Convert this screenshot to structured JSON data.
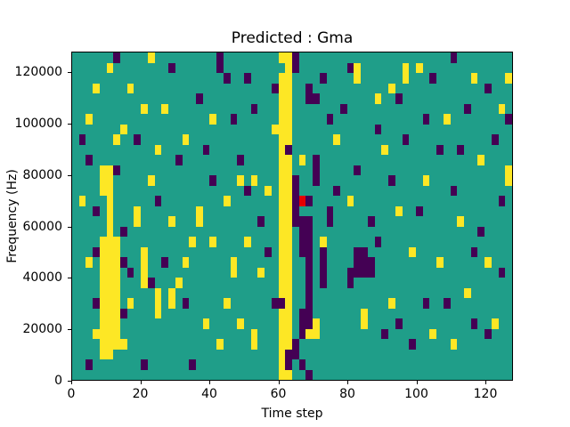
{
  "chart_data": {
    "type": "heatmap",
    "title": "Predicted : Gma",
    "xlabel": "Time step",
    "ylabel": "Frequency (Hz)",
    "xlim": [
      0,
      128
    ],
    "ylim": [
      0,
      128000
    ],
    "xticks": [
      0,
      20,
      40,
      60,
      80,
      100,
      120
    ],
    "yticks": [
      0,
      20000,
      40000,
      60000,
      80000,
      100000,
      120000
    ],
    "colormap": "viridis",
    "legend": "none",
    "colors": {
      "bg": "#1f9e89",
      "y": "#fde725",
      "p": "#440154",
      "r": "#e50000"
    },
    "grid": {
      "cols": 64,
      "rows": 32,
      "cell_time_span": 2,
      "cell_freq_span": 4000
    },
    "cells": [
      [
        30,
        0,
        2,
        32,
        "y"
      ],
      [
        30,
        1,
        1,
        1,
        "bg"
      ],
      [
        31,
        9,
        1,
        1,
        "p"
      ],
      [
        30,
        24,
        1,
        1,
        "p"
      ],
      [
        31,
        29,
        1,
        2,
        "p"
      ],
      [
        4,
        18,
        3,
        11,
        "y"
      ],
      [
        4,
        11,
        2,
        3,
        "y"
      ],
      [
        5,
        14,
        1,
        4,
        "y"
      ],
      [
        4,
        29,
        2,
        1,
        "y"
      ],
      [
        3,
        19,
        1,
        1,
        "p"
      ],
      [
        7,
        20,
        1,
        1,
        "p"
      ],
      [
        3,
        24,
        1,
        1,
        "p"
      ],
      [
        7,
        25,
        1,
        1,
        "p"
      ],
      [
        32,
        12,
        1,
        5,
        "p"
      ],
      [
        33,
        16,
        2,
        4,
        "p"
      ],
      [
        34,
        20,
        1,
        5,
        "p"
      ],
      [
        33,
        25,
        2,
        3,
        "p"
      ],
      [
        35,
        10,
        1,
        3,
        "p"
      ],
      [
        36,
        19,
        1,
        4,
        "p"
      ],
      [
        32,
        28,
        1,
        2,
        "p"
      ],
      [
        37,
        15,
        1,
        2,
        "p"
      ],
      [
        32,
        0,
        1,
        2,
        "p"
      ],
      [
        34,
        3,
        1,
        2,
        "p"
      ],
      [
        41,
        19,
        2,
        3,
        "p"
      ],
      [
        40,
        21,
        1,
        2,
        "p"
      ],
      [
        43,
        20,
        1,
        2,
        "p"
      ],
      [
        10,
        19,
        1,
        4,
        "y"
      ],
      [
        12,
        23,
        1,
        3,
        "y"
      ],
      [
        18,
        15,
        1,
        2,
        "y"
      ],
      [
        23,
        20,
        1,
        2,
        "y"
      ],
      [
        26,
        27,
        1,
        2,
        "y"
      ],
      [
        35,
        26,
        1,
        2,
        "y"
      ],
      [
        42,
        25,
        1,
        2,
        "y"
      ],
      [
        48,
        1,
        1,
        2,
        "y"
      ],
      [
        63,
        11,
        1,
        2,
        "y"
      ],
      [
        9,
        15,
        1,
        2,
        "y"
      ],
      [
        14,
        23,
        1,
        2,
        "y"
      ],
      [
        33,
        14,
        1,
        1,
        "r"
      ],
      [
        2,
        6,
        1,
        1,
        "y"
      ],
      [
        3,
        3,
        1,
        1,
        "y"
      ],
      [
        5,
        1,
        1,
        1,
        "y"
      ],
      [
        6,
        8,
        1,
        1,
        "y"
      ],
      [
        7,
        7,
        1,
        1,
        "y"
      ],
      [
        8,
        3,
        1,
        1,
        "y"
      ],
      [
        10,
        5,
        1,
        1,
        "y"
      ],
      [
        12,
        9,
        1,
        1,
        "y"
      ],
      [
        13,
        5,
        1,
        1,
        "y"
      ],
      [
        11,
        12,
        1,
        1,
        "y"
      ],
      [
        14,
        16,
        1,
        1,
        "y"
      ],
      [
        16,
        8,
        1,
        1,
        "y"
      ],
      [
        17,
        18,
        1,
        1,
        "y"
      ],
      [
        15,
        22,
        1,
        1,
        "y"
      ],
      [
        19,
        26,
        1,
        1,
        "y"
      ],
      [
        20,
        6,
        1,
        1,
        "y"
      ],
      [
        21,
        28,
        1,
        1,
        "y"
      ],
      [
        22,
        14,
        1,
        1,
        "y"
      ],
      [
        24,
        26,
        1,
        1,
        "y"
      ],
      [
        25,
        18,
        1,
        1,
        "y"
      ],
      [
        26,
        12,
        1,
        1,
        "y"
      ],
      [
        27,
        21,
        1,
        1,
        "y"
      ],
      [
        28,
        13,
        1,
        1,
        "y"
      ],
      [
        29,
        7,
        1,
        1,
        "y"
      ],
      [
        33,
        10,
        1,
        1,
        "y"
      ],
      [
        34,
        27,
        1,
        1,
        "y"
      ],
      [
        36,
        18,
        1,
        1,
        "y"
      ],
      [
        38,
        8,
        1,
        1,
        "y"
      ],
      [
        40,
        14,
        1,
        1,
        "y"
      ],
      [
        44,
        4,
        1,
        1,
        "y"
      ],
      [
        45,
        9,
        1,
        1,
        "y"
      ],
      [
        46,
        24,
        1,
        1,
        "y"
      ],
      [
        47,
        15,
        1,
        1,
        "y"
      ],
      [
        49,
        19,
        1,
        1,
        "y"
      ],
      [
        50,
        1,
        1,
        1,
        "y"
      ],
      [
        51,
        12,
        1,
        1,
        "y"
      ],
      [
        52,
        27,
        1,
        1,
        "y"
      ],
      [
        54,
        6,
        1,
        1,
        "y"
      ],
      [
        55,
        28,
        1,
        1,
        "y"
      ],
      [
        56,
        16,
        1,
        1,
        "y"
      ],
      [
        57,
        23,
        1,
        1,
        "y"
      ],
      [
        58,
        2,
        1,
        1,
        "y"
      ],
      [
        59,
        10,
        1,
        1,
        "y"
      ],
      [
        60,
        20,
        1,
        1,
        "y"
      ],
      [
        63,
        2,
        1,
        1,
        "y"
      ],
      [
        8,
        24,
        1,
        1,
        "y"
      ],
      [
        2,
        20,
        1,
        1,
        "y"
      ],
      [
        1,
        14,
        1,
        1,
        "y"
      ],
      [
        16,
        20,
        1,
        1,
        "y"
      ],
      [
        20,
        18,
        1,
        1,
        "y"
      ],
      [
        22,
        24,
        1,
        1,
        "y"
      ],
      [
        24,
        12,
        1,
        1,
        "y"
      ],
      [
        7,
        28,
        1,
        1,
        "y"
      ],
      [
        3,
        27,
        1,
        1,
        "y"
      ],
      [
        53,
        20,
        1,
        1,
        "y"
      ],
      [
        61,
        26,
        1,
        1,
        "y"
      ],
      [
        62,
        5,
        1,
        1,
        "y"
      ],
      [
        46,
        3,
        1,
        1,
        "y"
      ],
      [
        41,
        2,
        1,
        1,
        "y"
      ],
      [
        11,
        0,
        1,
        1,
        "y"
      ],
      [
        41,
        1,
        1,
        1,
        "y"
      ],
      [
        1,
        8,
        1,
        1,
        "p"
      ],
      [
        2,
        10,
        1,
        1,
        "p"
      ],
      [
        3,
        15,
        1,
        1,
        "p"
      ],
      [
        6,
        11,
        1,
        1,
        "p"
      ],
      [
        7,
        17,
        1,
        1,
        "p"
      ],
      [
        8,
        21,
        1,
        1,
        "p"
      ],
      [
        9,
        8,
        1,
        1,
        "p"
      ],
      [
        11,
        22,
        1,
        1,
        "p"
      ],
      [
        12,
        14,
        1,
        1,
        "p"
      ],
      [
        13,
        20,
        1,
        1,
        "p"
      ],
      [
        15,
        10,
        1,
        1,
        "p"
      ],
      [
        16,
        24,
        1,
        1,
        "p"
      ],
      [
        18,
        4,
        1,
        1,
        "p"
      ],
      [
        19,
        9,
        1,
        1,
        "p"
      ],
      [
        20,
        12,
        1,
        1,
        "p"
      ],
      [
        22,
        2,
        1,
        1,
        "p"
      ],
      [
        23,
        6,
        1,
        1,
        "p"
      ],
      [
        24,
        10,
        1,
        1,
        "p"
      ],
      [
        25,
        13,
        1,
        1,
        "p"
      ],
      [
        26,
        5,
        1,
        1,
        "p"
      ],
      [
        27,
        16,
        1,
        1,
        "p"
      ],
      [
        28,
        19,
        1,
        1,
        "p"
      ],
      [
        29,
        24,
        1,
        1,
        "p"
      ],
      [
        29,
        3,
        1,
        1,
        "p"
      ],
      [
        38,
        13,
        1,
        1,
        "p"
      ],
      [
        39,
        5,
        1,
        1,
        "p"
      ],
      [
        41,
        11,
        1,
        1,
        "p"
      ],
      [
        43,
        16,
        1,
        1,
        "p"
      ],
      [
        44,
        7,
        1,
        1,
        "p"
      ],
      [
        45,
        27,
        1,
        1,
        "p"
      ],
      [
        46,
        12,
        1,
        1,
        "p"
      ],
      [
        48,
        8,
        1,
        1,
        "p"
      ],
      [
        49,
        28,
        1,
        1,
        "p"
      ],
      [
        50,
        15,
        1,
        1,
        "p"
      ],
      [
        52,
        2,
        1,
        1,
        "p"
      ],
      [
        53,
        9,
        1,
        1,
        "p"
      ],
      [
        54,
        24,
        1,
        1,
        "p"
      ],
      [
        55,
        13,
        1,
        1,
        "p"
      ],
      [
        57,
        5,
        1,
        1,
        "p"
      ],
      [
        58,
        26,
        1,
        1,
        "p"
      ],
      [
        59,
        17,
        1,
        1,
        "p"
      ],
      [
        60,
        3,
        1,
        1,
        "p"
      ],
      [
        61,
        8,
        1,
        1,
        "p"
      ],
      [
        62,
        14,
        1,
        1,
        "p"
      ],
      [
        62,
        21,
        1,
        1,
        "p"
      ],
      [
        63,
        6,
        1,
        1,
        "p"
      ],
      [
        10,
        30,
        1,
        1,
        "p"
      ],
      [
        17,
        30,
        1,
        1,
        "p"
      ],
      [
        2,
        30,
        1,
        1,
        "p"
      ],
      [
        36,
        2,
        1,
        1,
        "p"
      ],
      [
        37,
        6,
        1,
        1,
        "p"
      ],
      [
        35,
        4,
        1,
        1,
        "p"
      ],
      [
        34,
        14,
        1,
        1,
        "p"
      ],
      [
        33,
        30,
        1,
        1,
        "p"
      ],
      [
        34,
        31,
        1,
        1,
        "p"
      ],
      [
        21,
        1,
        1,
        1,
        "p"
      ],
      [
        25,
        2,
        1,
        1,
        "p"
      ],
      [
        14,
        1,
        1,
        1,
        "p"
      ],
      [
        40,
        1,
        1,
        1,
        "p"
      ],
      [
        47,
        4,
        1,
        1,
        "p"
      ],
      [
        51,
        6,
        1,
        1,
        "p"
      ],
      [
        56,
        9,
        1,
        1,
        "p"
      ],
      [
        44,
        18,
        1,
        1,
        "p"
      ],
      [
        47,
        26,
        1,
        1,
        "p"
      ],
      [
        51,
        24,
        1,
        1,
        "p"
      ],
      [
        58,
        19,
        1,
        1,
        "p"
      ],
      [
        60,
        27,
        1,
        1,
        "p"
      ],
      [
        6,
        0,
        1,
        1,
        "p"
      ],
      [
        55,
        0,
        1,
        1,
        "p"
      ],
      [
        21,
        0,
        1,
        1,
        "p"
      ]
    ]
  }
}
